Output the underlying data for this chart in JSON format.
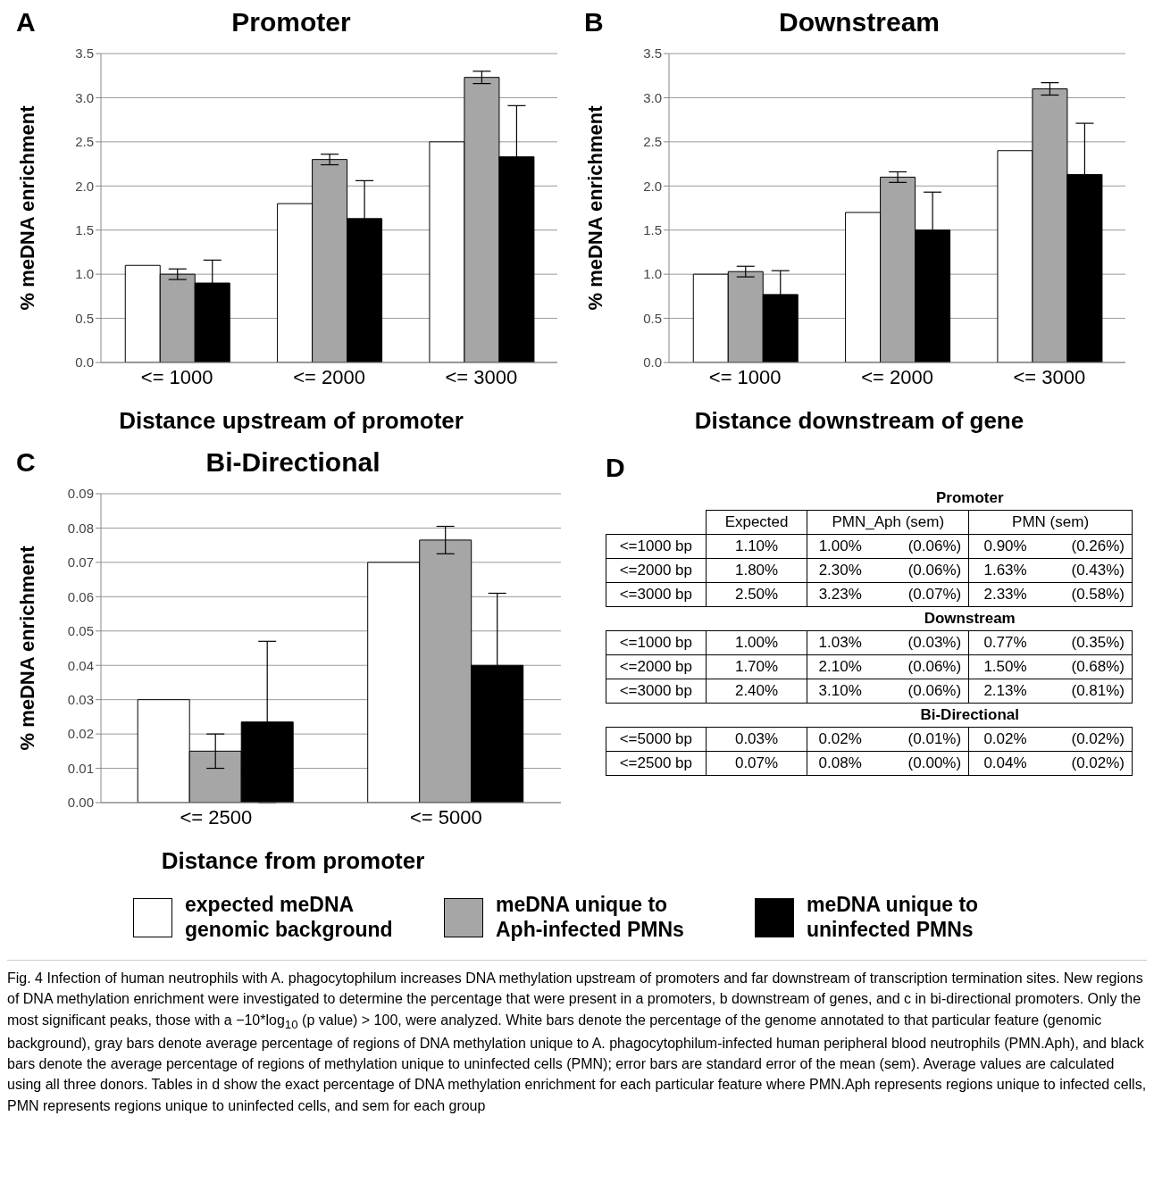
{
  "chart_data": [
    {
      "type": "bar",
      "title": "Promoter",
      "xlabel": "Distance upstream of promoter",
      "ylabel": "% meDNA enrichment",
      "annotations": [
        "A"
      ],
      "categories": [
        "<= 1000",
        "<= 2000",
        "<= 3000"
      ],
      "series": [
        {
          "name": "expected meDNA genomic background",
          "color": "#ffffff",
          "values": [
            1.1,
            1.8,
            2.5
          ]
        },
        {
          "name": "meDNA unique to Aph-infected PMNs",
          "color": "#a6a6a6",
          "values": [
            1.0,
            2.3,
            3.23
          ],
          "errors": [
            0.06,
            0.06,
            0.07
          ]
        },
        {
          "name": "meDNA unique to uninfected PMNs",
          "color": "#000000",
          "values": [
            0.9,
            1.63,
            2.33
          ],
          "errors": [
            0.26,
            0.43,
            0.58
          ]
        }
      ],
      "ylim": [
        0,
        3.5
      ],
      "yticks": [
        {
          "value": 0,
          "label": "0.0"
        },
        {
          "value": 0.5,
          "label": "0.5"
        },
        {
          "value": 1,
          "label": "1.0"
        },
        {
          "value": 1.5,
          "label": "1.5"
        },
        {
          "value": 2,
          "label": "2.0"
        },
        {
          "value": 2.5,
          "label": "2.5"
        },
        {
          "value": 3,
          "label": "3.0"
        },
        {
          "value": 3.5,
          "label": "3.5"
        }
      ],
      "grid": "y",
      "legend": "bottom"
    },
    {
      "type": "bar",
      "title": "Downstream",
      "xlabel": "Distance downstream of gene",
      "ylabel": "% meDNA enrichment",
      "annotations": [
        "B"
      ],
      "categories": [
        "<= 1000",
        "<= 2000",
        "<= 3000"
      ],
      "series": [
        {
          "color": "#ffffff",
          "values": [
            1.0,
            1.7,
            2.4
          ]
        },
        {
          "color": "#a6a6a6",
          "values": [
            1.03,
            2.1,
            3.1
          ],
          "errors": [
            0.06,
            0.06,
            0.07
          ]
        },
        {
          "color": "#000000",
          "values": [
            0.77,
            1.5,
            2.13
          ],
          "errors": [
            0.27,
            0.43,
            0.58
          ]
        }
      ],
      "ylim": [
        0,
        3.5
      ],
      "yticks": [
        {
          "value": 0,
          "label": "0.0"
        },
        {
          "value": 0.5,
          "label": "0.5"
        },
        {
          "value": 1,
          "label": "1.0"
        },
        {
          "value": 1.5,
          "label": "1.5"
        },
        {
          "value": 2,
          "label": "2.0"
        },
        {
          "value": 2.5,
          "label": "2.5"
        },
        {
          "value": 3,
          "label": "3.0"
        },
        {
          "value": 3.5,
          "label": "3.5"
        }
      ],
      "grid": "y"
    },
    {
      "type": "bar",
      "title": "Bi-Directional",
      "xlabel": "Distance from promoter",
      "ylabel": "% meDNA enrichment",
      "annotations": [
        "C",
        "Fig. 4 Infection of human neutrophils with A. phagocytophilum increases DNA methylation upstream of promoters and far downstream of transcription termination sites. New regions of DNA methylation enrichment were investigated to determine the percentage that were present in a promoters, b downstream of genes, and c in bi-directional promoters. Only the most significant peaks, those with a −10*log$_{10}$ (p value) > 100, were analyzed. White bars denote the percentage of the genome annotated to that particular feature (genomic background), gray bars denote average percentage of regions of DNA methylation unique to A. phagocytophilum-infected human peripheral blood neutrophils (PMN.Aph), and black bars denote the average percentage of regions of methylation unique to uninfected cells (PMN); error bars are standard error of the mean (sem). Average values are calculated using all three donors. Tables in d show the exact percentage of DNA methylation enrichment for each particular feature where PMN.Aph represents regions unique to infected cells, PMN represents regions unique to uninfected cells, and sem for each group"
      ],
      "categories": [
        "<= 2500",
        "<= 5000"
      ],
      "series": [
        {
          "color": "#ffffff",
          "values": [
            0.03,
            0.07
          ]
        },
        {
          "color": "#a6a6a6",
          "values": [
            0.015,
            0.0765
          ],
          "errors": [
            0.005,
            0.004
          ]
        },
        {
          "color": "#000000",
          "values": [
            0.0235,
            0.04
          ],
          "errors": [
            0.0235,
            0.021
          ]
        }
      ],
      "ylim": [
        0,
        0.09
      ],
      "yticks": [
        {
          "value": 0,
          "label": "0.00"
        },
        {
          "value": 0.01,
          "label": "0.01"
        },
        {
          "value": 0.02,
          "label": "0.02"
        },
        {
          "value": 0.03,
          "label": "0.03"
        },
        {
          "value": 0.04,
          "label": "0.04"
        },
        {
          "value": 0.05,
          "label": "0.05"
        },
        {
          "value": 0.06,
          "label": "0.06"
        },
        {
          "value": 0.07,
          "label": "0.07"
        },
        {
          "value": 0.08,
          "label": "0.08"
        },
        {
          "value": 0.09,
          "label": "0.09"
        }
      ],
      "grid": "y"
    },
    {
      "type": "other",
      "title": "Promoter",
      "annotations": [
        "D"
      ],
      "categories": [
        null,
        "Expected",
        "PMN_Aph (sem)",
        "PMN (sem)"
      ],
      "y_categories": [
        "<=1000 bp",
        "<=2000 bp",
        "<=3000 bp"
      ],
      "cell_labels": [
        [
          "1.10%",
          "1.00%",
          "(0.06%)",
          "0.90%",
          "(0.26%)"
        ],
        [
          "1.80%",
          "2.30%",
          "(0.06%)",
          "1.63%",
          "(0.43%)"
        ],
        [
          "2.50%",
          "3.23%",
          "(0.07%)",
          "2.33%",
          "(0.58%)"
        ]
      ]
    },
    {
      "type": "other",
      "title": "Downstream",
      "y_categories": [
        "<=1000 bp",
        "<=2000 bp",
        "<=3000 bp"
      ],
      "cell_labels": [
        [
          "1.00%",
          "1.03%",
          "(0.03%)",
          "0.77%",
          "(0.35%)"
        ],
        [
          "1.70%",
          "2.10%",
          "(0.06%)",
          "1.50%",
          "(0.68%)"
        ],
        [
          "2.40%",
          "3.10%",
          "(0.06%)",
          "2.13%",
          "(0.81%)"
        ]
      ]
    },
    {
      "type": "other",
      "title": "Bi-Directional",
      "y_categories": [
        "<=5000 bp",
        "<=2500 bp"
      ],
      "cell_labels": [
        [
          "0.03%",
          "0.02%",
          "(0.01%)",
          "0.02%",
          "(0.02%)"
        ],
        [
          "0.07%",
          "0.08%",
          "(0.00%)",
          "0.04%",
          "(0.02%)"
        ]
      ]
    }
  ]
}
